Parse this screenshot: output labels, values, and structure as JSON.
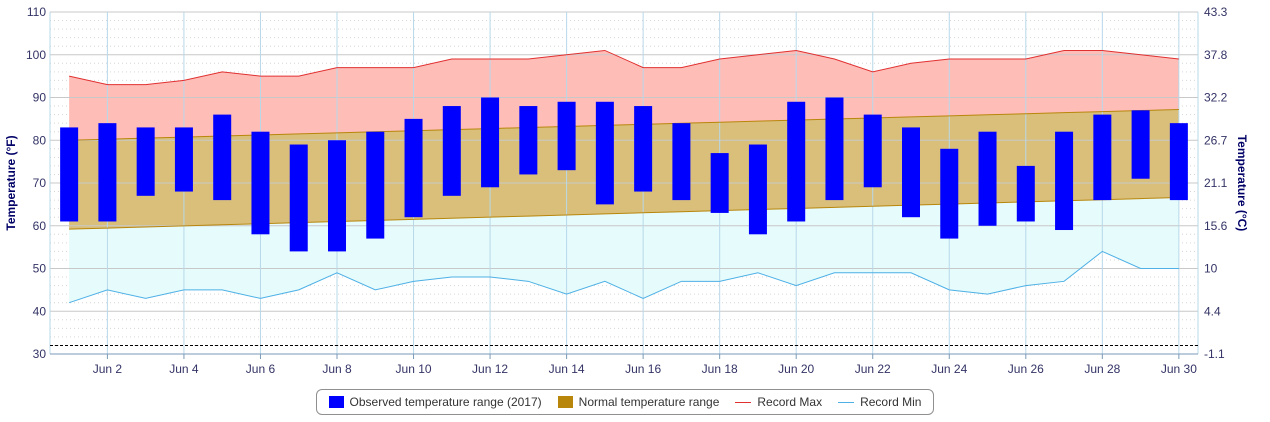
{
  "chart_data": {
    "type": "bar",
    "ylabel": "Temperature (°F)",
    "ylabel_right": "Temperature (°C)",
    "ylim": [
      30,
      110
    ],
    "y_ticks": [
      30,
      40,
      50,
      60,
      70,
      80,
      90,
      100,
      110
    ],
    "y_ticks_right": [
      "-1.1",
      "4.4",
      "10",
      "15.6",
      "21.1",
      "26.7",
      "32.2",
      "37.8",
      "43.3"
    ],
    "x_tick_labels": [
      "Jun 2",
      "Jun 4",
      "Jun 6",
      "Jun 8",
      "Jun 10",
      "Jun 12",
      "Jun 14",
      "Jun 16",
      "Jun 18",
      "Jun 20",
      "Jun 22",
      "Jun 24",
      "Jun 26",
      "Jun 28",
      "Jun 30"
    ],
    "reference_line": 32,
    "days": [
      1,
      2,
      3,
      4,
      5,
      6,
      7,
      8,
      9,
      10,
      11,
      12,
      13,
      14,
      15,
      16,
      17,
      18,
      19,
      20,
      21,
      22,
      23,
      24,
      25,
      26,
      27,
      28,
      29,
      30
    ],
    "series": [
      {
        "name": "Observed temperature range (2017)",
        "low": [
          61,
          61,
          67,
          68,
          66,
          58,
          54,
          54,
          57,
          62,
          67,
          69,
          72,
          73,
          65,
          68,
          66,
          63,
          58,
          61,
          66,
          69,
          62,
          57,
          60,
          61,
          59,
          66,
          71,
          66
        ],
        "high": [
          83,
          84,
          83,
          83,
          86,
          82,
          79,
          80,
          82,
          85,
          88,
          90,
          88,
          89,
          89,
          88,
          84,
          77,
          79,
          89,
          90,
          86,
          83,
          78,
          82,
          74,
          82,
          86,
          87,
          84
        ]
      },
      {
        "name": "Normal temperature range",
        "low_start": 59.2,
        "low_end": 66.6,
        "high_start": 80,
        "high_end": 87.2
      },
      {
        "name": "Record Max",
        "values": [
          95,
          93,
          93,
          94,
          96,
          95,
          95,
          97,
          97,
          97,
          99,
          99,
          99,
          100,
          101,
          97,
          97,
          99,
          100,
          101,
          99,
          96,
          98,
          99,
          99,
          99,
          101,
          101,
          100,
          99
        ]
      },
      {
        "name": "Record Min",
        "values": [
          42,
          45,
          43,
          45,
          45,
          43,
          45,
          49,
          45,
          47,
          48,
          48,
          47,
          44,
          47,
          43,
          47,
          47,
          49,
          46,
          49,
          49,
          49,
          45,
          44,
          46,
          47,
          54,
          50,
          50
        ]
      }
    ]
  },
  "colors": {
    "observed": "#0000ff",
    "normal": "#b8860b",
    "normal_fill": "#d9bf7a",
    "record_max": "#e03030",
    "record_max_fill": "#ffbdb8",
    "record_min": "#4db0e6",
    "record_min_fill": "#e6fbfb",
    "axis_text": "#333366",
    "title": "#000066"
  },
  "legend": {
    "observed": "Observed temperature range (2017)",
    "normal": "Normal temperature range",
    "record_max": "Record Max",
    "record_min": "Record Min"
  }
}
